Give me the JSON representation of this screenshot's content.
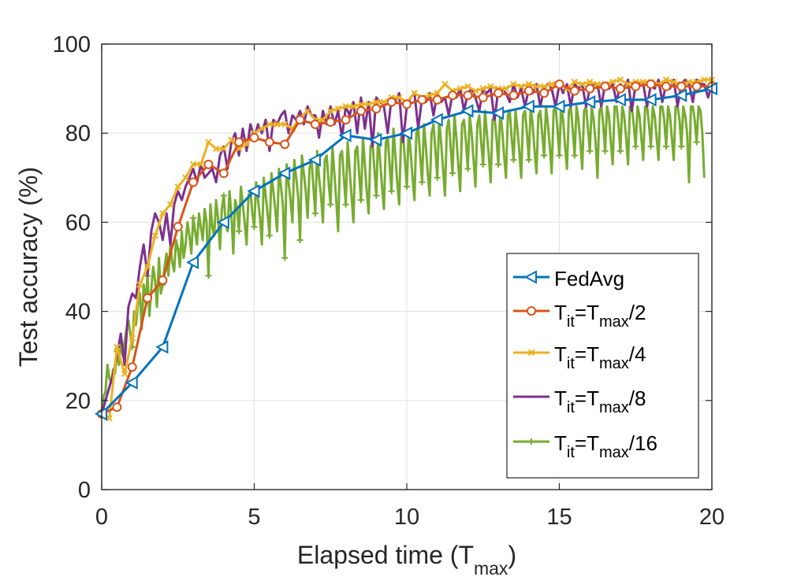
{
  "chart_data": {
    "type": "line",
    "xlabel": "Elapsed time (T",
    "xlabel_sub": "max",
    "xlabel_close": ")",
    "ylabel": "Test accuracy (%)",
    "xlim": [
      0,
      20
    ],
    "ylim": [
      0,
      100
    ],
    "xticks": [
      0,
      5,
      10,
      15,
      20
    ],
    "yticks": [
      0,
      20,
      40,
      60,
      80,
      100
    ],
    "xtick_labels": [
      "0",
      "5",
      "10",
      "15",
      "20"
    ],
    "ytick_labels": [
      "0",
      "20",
      "40",
      "60",
      "80",
      "100"
    ],
    "grid": true,
    "legend_position": "bottom-right",
    "series": [
      {
        "name": "FedAvg",
        "legend_label": "FedAvg",
        "color": "#0072BD",
        "marker": "triangle-left",
        "x": [
          0,
          1,
          2,
          3,
          4,
          5,
          6,
          7,
          8,
          9,
          10,
          11,
          12,
          13,
          14,
          15,
          16,
          17,
          18,
          19,
          20
        ],
        "values": [
          17,
          24,
          32,
          51,
          60,
          67,
          71,
          74,
          79.5,
          78.5,
          80,
          83,
          85,
          84.5,
          86,
          86,
          87,
          87.5,
          87.5,
          88.5,
          90
        ]
      },
      {
        "name": "T_it=T_max/2",
        "legend_label": {
          "a": "T",
          "b": "it",
          "c": "=T",
          "d": "max",
          "e": "/2"
        },
        "color": "#D95319",
        "marker": "circle",
        "x": [
          0,
          0.5,
          1,
          1.5,
          2,
          2.5,
          3,
          3.5,
          4,
          4.5,
          5,
          5.5,
          6,
          6.5,
          7,
          7.5,
          8,
          8.5,
          9,
          9.5,
          10,
          10.5,
          11,
          11.5,
          12,
          12.5,
          13,
          13.5,
          14,
          14.5,
          15,
          15.5,
          16,
          16.5,
          17,
          17.5,
          18,
          18.5,
          19,
          19.5,
          20
        ],
        "values": [
          17,
          18.5,
          27.5,
          43,
          47,
          59,
          69,
          73,
          71,
          78,
          79,
          78,
          77.5,
          83,
          82,
          82.5,
          83,
          85,
          85.5,
          87,
          86.5,
          87.5,
          87.5,
          88.5,
          88.5,
          88,
          89,
          88.5,
          89.5,
          89,
          91,
          89.5,
          90,
          90.5,
          90,
          90.5,
          91,
          90.5,
          90.5,
          90.5,
          90.5
        ]
      },
      {
        "name": "T_it=T_max/4",
        "legend_label": {
          "a": "T",
          "b": "it",
          "c": "=T",
          "d": "max",
          "e": "/4"
        },
        "color": "#EDB120",
        "marker": "x",
        "x_start": 0,
        "x_step": 0.25,
        "values": [
          17,
          16,
          32,
          26,
          34,
          46,
          50,
          57,
          62,
          64,
          68,
          70,
          73,
          73,
          78,
          76.5,
          76.5,
          78.5,
          76.5,
          77.5,
          80,
          81,
          82,
          82,
          82,
          81,
          83.5,
          85,
          83,
          83,
          85,
          85.5,
          86,
          86,
          86.5,
          86.5,
          87,
          87,
          88,
          88,
          87,
          89,
          88,
          88.5,
          89,
          91,
          89.5,
          90,
          90.5,
          89.5,
          90,
          90.5,
          90,
          90,
          91,
          90.5,
          91,
          90.5,
          90.5,
          91,
          91,
          90,
          91.5,
          91,
          91.5,
          91,
          91,
          91.5,
          92,
          91,
          91.5,
          91.5,
          91.5,
          91,
          92,
          91.5,
          91,
          91.5,
          91.5,
          92,
          92
        ]
      },
      {
        "name": "T_it=T_max/8",
        "legend_label": {
          "a": "T",
          "b": "it",
          "c": "=T",
          "d": "max",
          "e": "/8"
        },
        "color": "#7E2F8E",
        "marker": "none",
        "x_start": 0,
        "x_step": 0.125,
        "values": [
          17,
          20,
          23,
          26,
          30,
          35,
          28,
          41,
          44,
          43,
          50,
          55,
          48,
          58,
          62,
          60,
          56,
          62,
          55,
          64,
          67,
          65,
          68,
          70,
          72,
          69,
          73,
          70,
          71,
          72,
          69,
          75,
          77,
          72,
          78,
          80,
          75,
          81,
          76,
          82,
          79,
          82,
          80,
          83,
          76,
          83,
          82,
          84,
          85,
          80,
          84,
          83,
          85,
          82,
          86,
          84,
          84,
          79,
          85,
          82,
          86,
          82,
          85,
          79,
          86,
          84,
          87,
          80,
          88,
          81,
          87,
          77,
          88,
          87,
          86,
          80,
          88,
          87,
          89,
          78,
          86,
          88,
          89,
          81,
          88,
          87,
          89,
          84,
          89,
          87,
          88,
          84,
          89,
          88,
          90,
          85,
          89,
          90,
          88,
          85,
          90,
          89,
          90,
          83,
          90,
          90,
          89,
          87,
          91,
          88,
          90,
          86,
          90,
          89,
          91,
          86,
          90,
          91,
          90,
          86,
          91,
          89,
          91,
          86,
          91,
          90,
          91,
          86,
          90,
          91,
          91,
          86,
          91,
          90,
          91,
          87,
          91,
          90,
          92,
          85,
          91,
          91,
          91,
          86,
          91,
          90,
          92,
          87,
          91,
          90,
          92,
          86,
          91,
          92,
          91,
          87,
          92,
          91,
          91,
          88,
          91
        ]
      },
      {
        "name": "T_it=T_max/16",
        "legend_label": {
          "a": "T",
          "b": "it",
          "c": "=T",
          "d": "max",
          "e": "/16"
        },
        "color": "#77AC30",
        "marker": "plus",
        "x_start": 0,
        "x_step": 0.0625,
        "values": [
          17,
          21,
          22,
          28,
          25,
          24,
          27,
          26,
          31,
          28,
          34,
          30,
          33,
          36,
          38,
          35,
          32,
          40,
          37,
          42,
          44,
          36,
          46,
          42,
          48,
          39,
          45,
          50,
          47,
          41,
          52,
          44,
          46,
          50,
          53,
          48,
          55,
          51,
          49,
          56,
          54,
          50,
          58,
          52,
          55,
          60,
          57,
          53,
          61,
          58,
          55,
          62,
          59,
          56,
          63,
          60,
          48,
          64,
          59,
          57,
          65,
          61,
          54,
          63,
          66,
          60,
          58,
          67,
          62,
          53,
          65,
          63,
          58,
          68,
          64,
          60,
          55,
          66,
          67,
          62,
          59,
          69,
          65,
          61,
          55,
          70,
          66,
          62,
          57,
          71,
          67,
          63,
          58,
          72,
          68,
          64,
          52,
          73,
          69,
          65,
          60,
          74,
          70,
          66,
          56,
          75,
          71,
          67,
          61,
          72,
          74,
          68,
          62,
          76,
          70,
          66,
          60,
          74,
          75,
          69,
          64,
          77,
          71,
          65,
          58,
          75,
          76,
          70,
          64,
          78,
          72,
          66,
          60,
          76,
          77,
          71,
          65,
          79,
          73,
          67,
          62,
          77,
          78,
          72,
          66,
          80,
          74,
          68,
          63,
          78,
          79,
          73,
          67,
          81,
          75,
          69,
          64,
          79,
          80,
          74,
          68,
          80,
          76,
          70,
          65,
          80,
          81,
          75,
          69,
          82,
          77,
          71,
          66,
          80,
          82,
          76,
          70,
          83,
          78,
          72,
          66,
          81,
          83,
          77,
          71,
          84,
          79,
          73,
          67,
          82,
          83,
          78,
          72,
          84,
          80,
          74,
          68,
          82,
          84,
          78,
          73,
          85,
          80,
          75,
          69,
          83,
          84,
          79,
          73,
          85,
          81,
          75,
          70,
          84,
          85,
          79,
          74,
          85,
          81,
          76,
          70,
          84,
          85,
          80,
          74,
          86,
          82,
          76,
          71,
          84,
          85,
          80,
          75,
          86,
          82,
          77,
          71,
          85,
          86,
          81,
          75,
          86,
          83,
          77,
          72,
          85,
          86,
          81,
          75,
          86,
          83,
          78,
          72,
          85,
          86,
          81,
          76,
          86,
          83,
          78,
          70,
          85,
          86,
          82,
          76,
          86,
          84,
          78,
          73,
          86,
          86,
          82,
          76,
          86,
          84,
          79,
          73,
          86,
          86,
          82,
          77,
          86,
          84,
          79,
          74,
          86,
          86,
          82,
          77,
          86,
          84,
          79,
          74,
          86,
          86,
          83,
          77,
          86,
          84,
          79,
          74,
          86,
          86,
          83,
          77,
          86,
          84,
          80,
          69,
          86,
          86,
          83,
          78,
          86,
          85,
          80,
          70
        ]
      }
    ]
  }
}
